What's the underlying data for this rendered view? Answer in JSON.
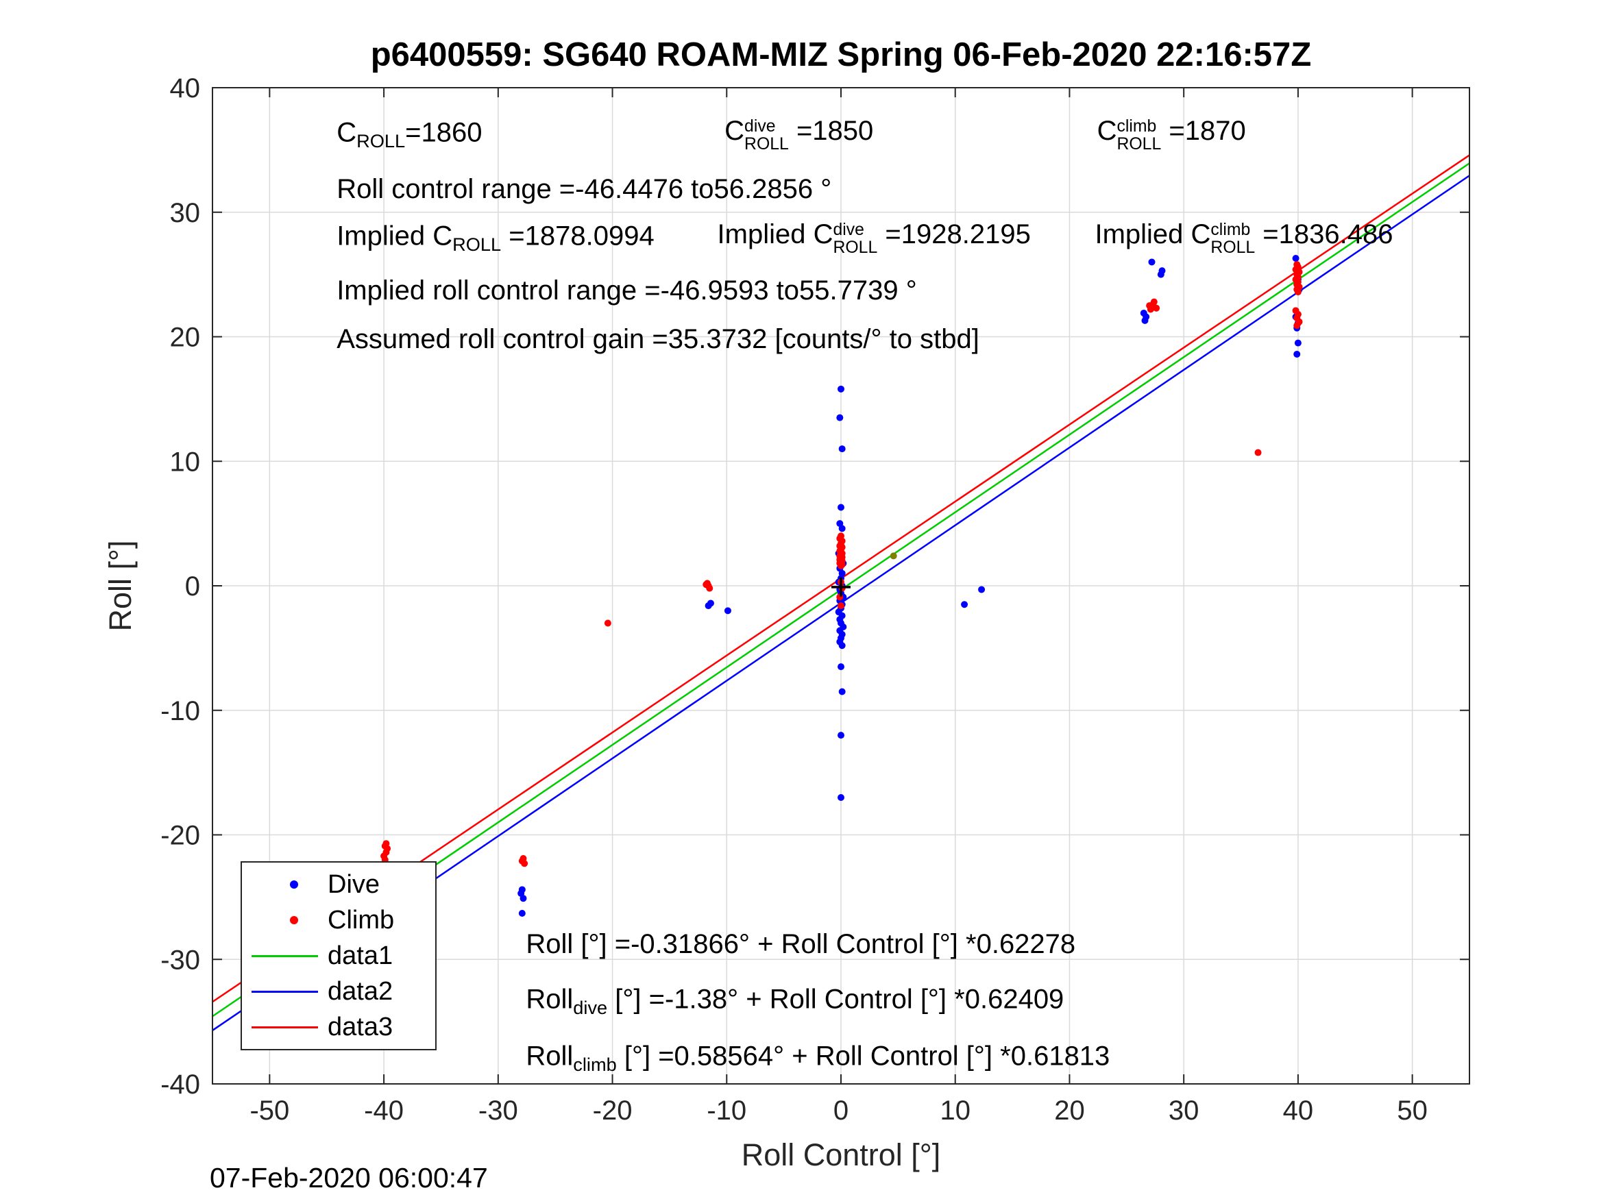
{
  "timestamp": "07-Feb-2020 06:00:47",
  "chart_data": {
    "type": "scatter",
    "title": "p6400559: SG640 ROAM-MIZ Spring 06-Feb-2020 22:16:57Z",
    "xlabel": "Roll Control [°]",
    "ylabel": "Roll [°]",
    "xlim": [
      -55,
      55
    ],
    "ylim": [
      -40,
      40
    ],
    "xticks": [
      -50,
      -40,
      -30,
      -20,
      -10,
      0,
      10,
      20,
      30,
      40,
      50
    ],
    "yticks": [
      -40,
      -30,
      -20,
      -10,
      0,
      10,
      20,
      30,
      40
    ],
    "grid": true,
    "colors": {
      "grid": "#dadada",
      "axis": "#262626"
    },
    "legend": {
      "position": "lower-left",
      "entries": [
        {
          "label": "Dive",
          "kind": "marker",
          "color": "#0000ff"
        },
        {
          "label": "Climb",
          "kind": "marker",
          "color": "#ff0000"
        },
        {
          "label": "data1",
          "kind": "line",
          "color": "#00cc00"
        },
        {
          "label": "data2",
          "kind": "line",
          "color": "#0000ff"
        },
        {
          "label": "data3",
          "kind": "line",
          "color": "#ff0000"
        }
      ]
    },
    "series": [
      {
        "name": "Dive",
        "type": "scatter",
        "color": "#0000ff",
        "points": [
          [
            -39.9,
            -23.2
          ],
          [
            -39.8,
            -23.5
          ],
          [
            -40.0,
            -23.8
          ],
          [
            -39.7,
            -24.1
          ],
          [
            -39.9,
            -24.4
          ],
          [
            -40.1,
            -24.7
          ],
          [
            -39.8,
            -25.0
          ],
          [
            -39.9,
            -25.4
          ],
          [
            -40.0,
            -25.8
          ],
          [
            -39.8,
            -26.1
          ],
          [
            -39.9,
            -27.3
          ],
          [
            -39.8,
            -28.4
          ],
          [
            -40.0,
            -28.7
          ],
          [
            -27.9,
            -24.4
          ],
          [
            -28.0,
            -24.7
          ],
          [
            -27.8,
            -25.1
          ],
          [
            -27.9,
            -26.3
          ],
          [
            -11.4,
            -1.4
          ],
          [
            -11.6,
            -1.6
          ],
          [
            -9.9,
            -2.0
          ],
          [
            0.0,
            15.8
          ],
          [
            -0.1,
            13.5
          ],
          [
            0.1,
            11.0
          ],
          [
            0.0,
            6.3
          ],
          [
            -0.1,
            5.0
          ],
          [
            0.1,
            4.6
          ],
          [
            -0.2,
            2.6
          ],
          [
            0.0,
            2.2
          ],
          [
            0.2,
            1.8
          ],
          [
            -0.1,
            1.4
          ],
          [
            0.1,
            1.0
          ],
          [
            0.0,
            0.6
          ],
          [
            -0.2,
            0.3
          ],
          [
            0.1,
            0.0
          ],
          [
            -0.1,
            -0.3
          ],
          [
            0.0,
            -0.6
          ],
          [
            0.2,
            -0.9
          ],
          [
            -0.1,
            -1.2
          ],
          [
            0.1,
            -1.5
          ],
          [
            0.0,
            -1.8
          ],
          [
            -0.2,
            -2.1
          ],
          [
            0.1,
            -2.4
          ],
          [
            -0.1,
            -2.7
          ],
          [
            0.0,
            -3.0
          ],
          [
            0.2,
            -3.3
          ],
          [
            -0.1,
            -3.6
          ],
          [
            0.1,
            -3.9
          ],
          [
            0.0,
            -4.2
          ],
          [
            -0.1,
            -4.5
          ],
          [
            0.1,
            -4.8
          ],
          [
            0.0,
            -6.5
          ],
          [
            0.1,
            -8.5
          ],
          [
            0.0,
            -12.0
          ],
          [
            0.0,
            -17.0
          ],
          [
            10.8,
            -1.5
          ],
          [
            12.3,
            -0.3
          ],
          [
            26.6,
            21.3
          ],
          [
            26.7,
            21.6
          ],
          [
            26.5,
            21.9
          ],
          [
            27.2,
            26.0
          ],
          [
            28.0,
            25.0
          ],
          [
            28.1,
            25.3
          ],
          [
            39.8,
            26.3
          ],
          [
            40.0,
            24.6
          ],
          [
            39.9,
            24.2
          ],
          [
            40.1,
            23.8
          ],
          [
            39.8,
            21.6
          ],
          [
            40.0,
            21.1
          ],
          [
            39.9,
            20.7
          ],
          [
            40.0,
            19.5
          ],
          [
            39.9,
            18.6
          ]
        ]
      },
      {
        "name": "Climb",
        "type": "scatter",
        "color": "#ff0000",
        "points": [
          [
            -39.8,
            -20.7
          ],
          [
            -39.9,
            -20.9
          ],
          [
            -39.7,
            -21.1
          ],
          [
            -39.8,
            -21.4
          ],
          [
            -40.0,
            -21.7
          ],
          [
            -39.9,
            -22.0
          ],
          [
            -39.8,
            -22.3
          ],
          [
            -39.9,
            -22.5
          ],
          [
            -27.8,
            -21.9
          ],
          [
            -27.9,
            -22.1
          ],
          [
            -27.7,
            -22.3
          ],
          [
            -20.4,
            -3.0
          ],
          [
            -11.7,
            0.2
          ],
          [
            -11.6,
            0.0
          ],
          [
            -11.5,
            -0.2
          ],
          [
            -11.8,
            0.1
          ],
          [
            0.0,
            4.0
          ],
          [
            -0.1,
            3.8
          ],
          [
            0.1,
            3.6
          ],
          [
            0.0,
            3.4
          ],
          [
            -0.1,
            3.2
          ],
          [
            0.1,
            3.1
          ],
          [
            0.0,
            2.9
          ],
          [
            -0.1,
            2.8
          ],
          [
            0.1,
            2.6
          ],
          [
            0.0,
            2.5
          ],
          [
            -0.1,
            2.4
          ],
          [
            0.1,
            2.3
          ],
          [
            0.0,
            2.2
          ],
          [
            -0.1,
            2.1
          ],
          [
            0.1,
            2.0
          ],
          [
            0.0,
            1.9
          ],
          [
            -0.1,
            1.8
          ],
          [
            0.1,
            1.7
          ],
          [
            0.0,
            1.6
          ],
          [
            0.0,
            0.3
          ],
          [
            0.1,
            -0.2
          ],
          [
            -0.1,
            -0.9
          ],
          [
            0.0,
            -1.6
          ],
          [
            27.1,
            22.2
          ],
          [
            27.2,
            22.4
          ],
          [
            27.3,
            22.6
          ],
          [
            27.4,
            22.8
          ],
          [
            27.0,
            22.5
          ],
          [
            27.6,
            22.3
          ],
          [
            36.5,
            10.7
          ],
          [
            39.9,
            25.8
          ],
          [
            40.0,
            25.6
          ],
          [
            39.8,
            25.4
          ],
          [
            40.1,
            25.2
          ],
          [
            39.9,
            25.0
          ],
          [
            40.0,
            24.8
          ],
          [
            39.8,
            24.6
          ],
          [
            40.0,
            24.4
          ],
          [
            39.9,
            24.2
          ],
          [
            40.1,
            24.0
          ],
          [
            39.9,
            23.8
          ],
          [
            40.0,
            23.6
          ],
          [
            39.8,
            22.1
          ],
          [
            40.0,
            21.8
          ],
          [
            39.9,
            21.5
          ],
          [
            40.1,
            21.2
          ],
          [
            39.9,
            20.9
          ]
        ]
      },
      {
        "name": "data1",
        "type": "line",
        "color": "#00cc00",
        "intercept": -0.31866,
        "slope": 0.62278
      },
      {
        "name": "data2",
        "type": "line",
        "color": "#0000ff",
        "intercept": -1.38,
        "slope": 0.62409
      },
      {
        "name": "data3",
        "type": "line",
        "color": "#ff0000",
        "intercept": 0.58564,
        "slope": 0.61813
      }
    ],
    "extra_markers": [
      {
        "shape": "plus",
        "x": 0,
        "y": -0.1,
        "color": "#000000"
      },
      {
        "shape": "dot",
        "x": 4.6,
        "y": 2.4,
        "color": "#808000"
      }
    ],
    "annotations": [
      {
        "x": 0.0988,
        "y": 0.047,
        "parts": [
          {
            "t": "C"
          },
          {
            "sub": "ROLL"
          },
          {
            "t": "=1860"
          }
        ]
      },
      {
        "x": 0.4074,
        "y": 0.047,
        "parts": [
          {
            "t": "C"
          },
          {
            "stack": {
              "sup": "dive",
              "sub": "ROLL"
            }
          },
          {
            "t": " =1850"
          }
        ]
      },
      {
        "x": 0.7037,
        "y": 0.047,
        "parts": [
          {
            "t": "C"
          },
          {
            "stack": {
              "sup": "climb",
              "sub": "ROLL"
            }
          },
          {
            "t": " =1870"
          }
        ]
      },
      {
        "x": 0.0988,
        "y": 0.1018,
        "parts": [
          {
            "t": "Roll control range =-46.4476 to56.2856 °"
          }
        ]
      },
      {
        "x": 0.0988,
        "y": 0.1506,
        "parts": [
          {
            "t": "Implied C"
          },
          {
            "sub": "ROLL"
          },
          {
            "t": " =1878.0994"
          }
        ]
      },
      {
        "x": 0.4016,
        "y": 0.1506,
        "parts": [
          {
            "t": "Implied C"
          },
          {
            "stack": {
              "sup": "dive",
              "sub": "ROLL"
            }
          },
          {
            "t": " =1928.2195"
          }
        ]
      },
      {
        "x": 0.702,
        "y": 0.1506,
        "parts": [
          {
            "t": "Implied C"
          },
          {
            "stack": {
              "sup": "climb",
              "sub": "ROLL"
            }
          },
          {
            "t": " =1836.486"
          }
        ]
      },
      {
        "x": 0.0988,
        "y": 0.2035,
        "parts": [
          {
            "t": "Implied roll control range =-46.9593 to55.7739 °"
          }
        ]
      },
      {
        "x": 0.0988,
        "y": 0.2523,
        "parts": [
          {
            "t": "Assumed roll control gain =35.3732 [counts/° to stbd]"
          }
        ]
      }
    ],
    "equations": [
      {
        "x": 0.2494,
        "y": 0.8598,
        "parts": [
          {
            "t": "Roll [°] =-0.31866° + Roll Control [°] *0.62278"
          }
        ]
      },
      {
        "x": 0.2494,
        "y": 0.9169,
        "parts": [
          {
            "t": "Roll"
          },
          {
            "sub": "dive"
          },
          {
            "t": " [°] =-1.38° + Roll Control [°] *0.62409"
          }
        ]
      },
      {
        "x": 0.2494,
        "y": 0.974,
        "parts": [
          {
            "t": "Roll"
          },
          {
            "sub": "climb"
          },
          {
            "t": " [°] =0.58564° + Roll Control [°] *0.61813"
          }
        ]
      }
    ]
  }
}
